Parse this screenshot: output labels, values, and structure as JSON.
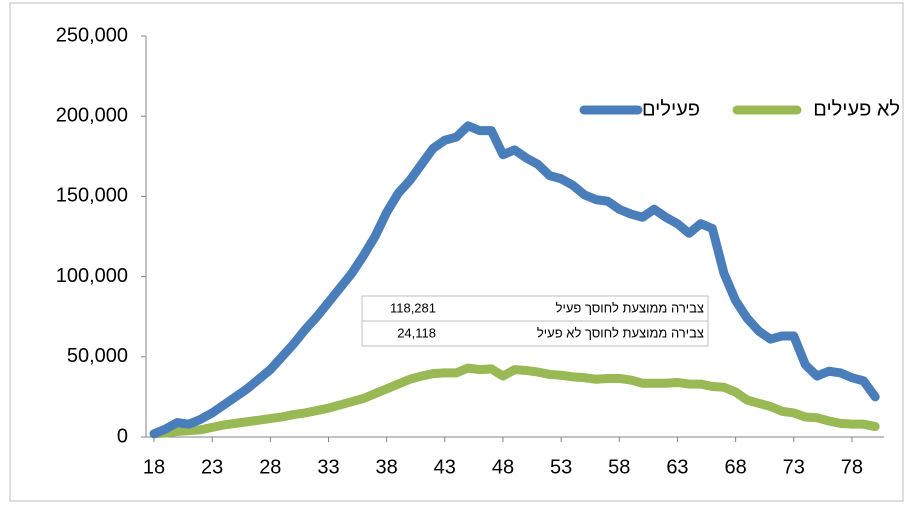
{
  "chart_data": {
    "type": "line",
    "x": [
      18,
      19,
      20,
      21,
      22,
      23,
      24,
      25,
      26,
      27,
      28,
      29,
      30,
      31,
      32,
      33,
      34,
      35,
      36,
      37,
      38,
      39,
      40,
      41,
      42,
      43,
      44,
      45,
      46,
      47,
      48,
      49,
      50,
      51,
      52,
      53,
      54,
      55,
      56,
      57,
      58,
      59,
      60,
      61,
      62,
      63,
      64,
      65,
      66,
      67,
      68,
      69,
      70,
      71,
      72,
      73,
      74,
      75,
      76,
      77,
      78,
      79,
      80
    ],
    "series": [
      {
        "name": "פעילים",
        "color": "#4a7ebb",
        "values": [
          2000,
          5000,
          9000,
          8000,
          11000,
          15000,
          20000,
          25000,
          30000,
          36000,
          42000,
          50000,
          58000,
          67000,
          75000,
          84000,
          93000,
          102000,
          113000,
          125000,
          140000,
          152000,
          160000,
          170000,
          180000,
          185000,
          187000,
          194000,
          191000,
          191000,
          176000,
          179000,
          174000,
          170000,
          163000,
          161000,
          157000,
          151000,
          148000,
          147000,
          142000,
          139000,
          137000,
          142000,
          137000,
          133000,
          127000,
          133000,
          130000,
          102000,
          85000,
          74000,
          66000,
          61000,
          63000,
          63000,
          45000,
          38000,
          41000,
          40000,
          37000,
          35000,
          25000
        ]
      },
      {
        "name": "לא פעילים",
        "color": "#98b954",
        "values": [
          2000,
          2500,
          3500,
          4000,
          4500,
          6000,
          7500,
          8500,
          9500,
          10500,
          11500,
          12500,
          14000,
          15000,
          16500,
          18000,
          20000,
          22000,
          24000,
          27000,
          30000,
          33000,
          36000,
          38000,
          39500,
          40000,
          40000,
          43000,
          42000,
          42500,
          38000,
          42000,
          41500,
          40500,
          39000,
          38500,
          37500,
          37000,
          36000,
          36500,
          36500,
          35500,
          33500,
          33500,
          33500,
          34000,
          33000,
          33000,
          31500,
          31000,
          28000,
          23000,
          21000,
          19000,
          16000,
          15000,
          12500,
          12000,
          10000,
          8500,
          8000,
          8000,
          6500
        ]
      }
    ],
    "xlim": [
      18,
      80.5
    ],
    "xticks": [
      18,
      23,
      28,
      33,
      38,
      43,
      48,
      53,
      58,
      63,
      68,
      73,
      78
    ],
    "ylim": [
      0,
      250000
    ],
    "yticks": [
      0,
      {
        "value": 50000,
        "label": "50,000"
      },
      {
        "value": 100000,
        "label": "100,000"
      },
      {
        "value": 150000,
        "label": "150,000"
      },
      {
        "value": 200000,
        "label": "200,000"
      },
      {
        "value": 250000,
        "label": "250,000"
      }
    ],
    "annotation": [
      {
        "label": "צבירה ממוצעת לחוסך פעיל",
        "value": "118,281"
      },
      {
        "label": "צבירה ממוצעת לחוסך לא פעיל",
        "value": "24,118"
      }
    ]
  }
}
